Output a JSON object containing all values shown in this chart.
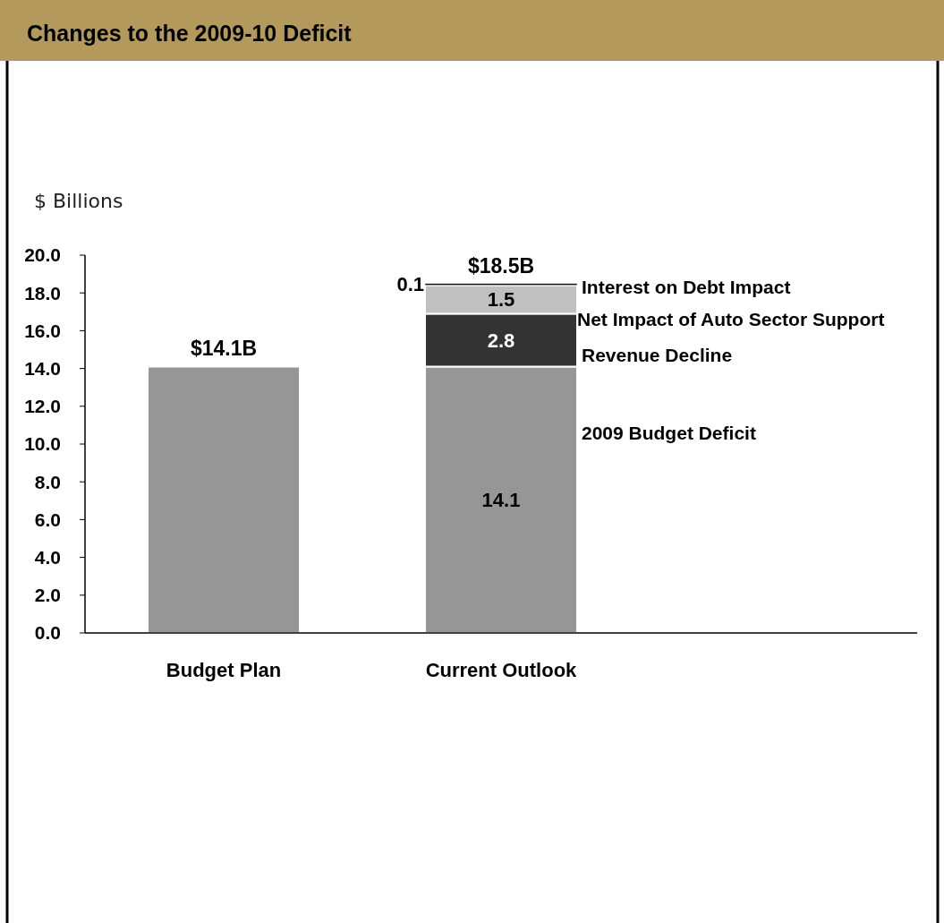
{
  "chart_data": {
    "type": "bar",
    "title": "Changes to the 2009-10 Deficit",
    "ylabel": "$ Billions",
    "categories": [
      "Budget Plan",
      "Current Outlook"
    ],
    "stacked": true,
    "ylim": [
      0,
      20
    ],
    "yticks": [
      {
        "value": 0,
        "label": "0.0"
      },
      {
        "value": 2,
        "label": "2.0"
      },
      {
        "value": 4,
        "label": "4.0"
      },
      {
        "value": 6,
        "label": "6.0"
      },
      {
        "value": 8,
        "label": "8.0"
      },
      {
        "value": 10,
        "label": "10.0"
      },
      {
        "value": 12,
        "label": "12.0"
      },
      {
        "value": 14,
        "label": "14.0"
      },
      {
        "value": 16,
        "label": "16.0"
      },
      {
        "value": 18,
        "label": "18.0"
      },
      {
        "value": 20,
        "label": "20.0"
      }
    ],
    "grid": false,
    "series": [
      {
        "name": "2009 Budget Deficit",
        "color": "#969696",
        "values": [
          14.1,
          14.1
        ],
        "value_labels": [
          null,
          "14.1"
        ]
      },
      {
        "name": "Revenue Decline",
        "color": "#333333",
        "values": [
          null,
          2.8
        ],
        "value_labels": [
          null,
          "2.8"
        ]
      },
      {
        "name": "Net Impact of Auto Sector Support",
        "color": "#c0c0c0",
        "values": [
          null,
          1.5
        ],
        "value_labels": [
          null,
          "1.5"
        ]
      },
      {
        "name": "Interest on Debt Impact",
        "color": "#111111",
        "values": [
          null,
          0.1
        ],
        "value_labels": [
          null,
          "0.1"
        ]
      }
    ],
    "totals": [
      "$14.1B",
      "$18.5B"
    ]
  }
}
